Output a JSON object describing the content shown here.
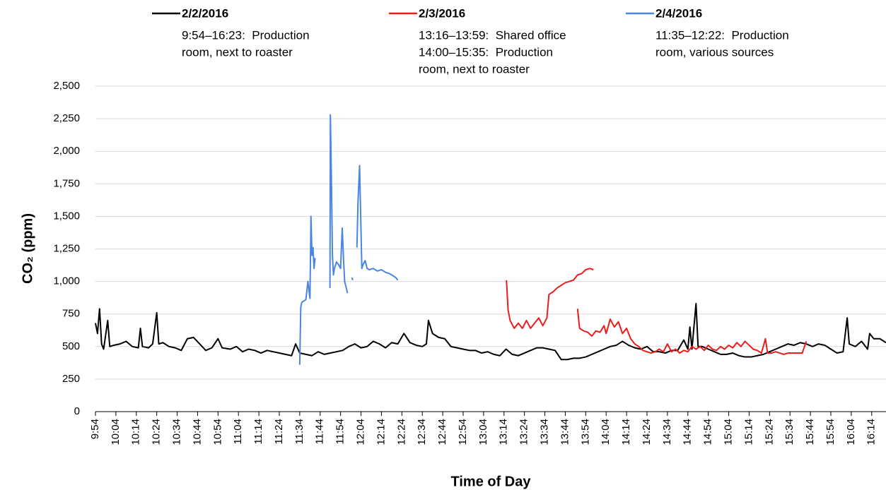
{
  "chart_data": {
    "type": "line",
    "x_label": "Time of Day",
    "y_label": "CO₂ (ppm)",
    "xlim": [
      594,
      981
    ],
    "ylim": [
      0,
      2500
    ],
    "yticks": [
      0,
      250,
      500,
      750,
      {
        "value": 1000,
        "label": "1,000"
      },
      {
        "value": 1250,
        "label": "1,250"
      },
      {
        "value": 1500,
        "label": "1,500"
      },
      {
        "value": 1750,
        "label": "1,750"
      },
      {
        "value": 2000,
        "label": "2,000"
      },
      {
        "value": 2250,
        "label": "2,250"
      },
      {
        "value": 2500,
        "label": "2,500"
      }
    ],
    "xticks": [
      {
        "value": 594,
        "label": "9:54"
      },
      {
        "value": 604,
        "label": "10:04"
      },
      {
        "value": 614,
        "label": "10:14"
      },
      {
        "value": 624,
        "label": "10:24"
      },
      {
        "value": 634,
        "label": "10:34"
      },
      {
        "value": 644,
        "label": "10:44"
      },
      {
        "value": 654,
        "label": "10:54"
      },
      {
        "value": 664,
        "label": "11:04"
      },
      {
        "value": 674,
        "label": "11:14"
      },
      {
        "value": 684,
        "label": "11:24"
      },
      {
        "value": 694,
        "label": "11:34"
      },
      {
        "value": 704,
        "label": "11:44"
      },
      {
        "value": 714,
        "label": "11:54"
      },
      {
        "value": 724,
        "label": "12:04"
      },
      {
        "value": 734,
        "label": "12:14"
      },
      {
        "value": 744,
        "label": "12:24"
      },
      {
        "value": 754,
        "label": "12:34"
      },
      {
        "value": 764,
        "label": "12:44"
      },
      {
        "value": 774,
        "label": "12:54"
      },
      {
        "value": 784,
        "label": "13:04"
      },
      {
        "value": 794,
        "label": "13:14"
      },
      {
        "value": 804,
        "label": "13:24"
      },
      {
        "value": 814,
        "label": "13:34"
      },
      {
        "value": 824,
        "label": "13:44"
      },
      {
        "value": 834,
        "label": "13:54"
      },
      {
        "value": 844,
        "label": "14:04"
      },
      {
        "value": 854,
        "label": "14:14"
      },
      {
        "value": 864,
        "label": "14:24"
      },
      {
        "value": 874,
        "label": "14:34"
      },
      {
        "value": 884,
        "label": "14:44"
      },
      {
        "value": 894,
        "label": "14:54"
      },
      {
        "value": 904,
        "label": "15:04"
      },
      {
        "value": 914,
        "label": "15:14"
      },
      {
        "value": 924,
        "label": "15:24"
      },
      {
        "value": 934,
        "label": "15:34"
      },
      {
        "value": 944,
        "label": "15:44"
      },
      {
        "value": 954,
        "label": "15:54"
      },
      {
        "value": 964,
        "label": "16:04"
      },
      {
        "value": 974,
        "label": "16:14"
      }
    ],
    "legend": "top",
    "series": [
      {
        "name": "2/2/2016",
        "color": "#000000",
        "description": [
          "9:54–16:23:  Production",
          "room, next to roaster"
        ],
        "x": [
          594,
          595,
          596,
          597,
          598,
          600,
          601,
          603,
          606,
          609,
          612,
          615,
          616,
          617,
          620,
          622,
          624,
          625,
          627,
          630,
          633,
          636,
          639,
          642,
          645,
          648,
          651,
          654,
          656,
          660,
          663,
          666,
          669,
          672,
          675,
          678,
          681,
          684,
          687,
          690,
          692,
          694,
          697,
          700,
          703,
          706,
          709,
          712,
          715,
          718,
          721,
          724,
          727,
          730,
          733,
          736,
          739,
          742,
          745,
          748,
          751,
          754,
          756,
          757,
          759,
          762,
          765,
          768,
          771,
          774,
          777,
          780,
          783,
          786,
          789,
          792,
          795,
          798,
          801,
          804,
          807,
          810,
          813,
          816,
          819,
          822,
          825,
          828,
          831,
          834,
          837,
          840,
          843,
          846,
          849,
          852,
          855,
          858,
          861,
          864,
          867,
          870,
          873,
          876,
          879,
          882,
          884,
          885,
          886,
          888,
          889,
          891,
          894,
          897,
          900,
          903,
          906,
          909,
          912,
          915,
          918,
          921,
          924,
          927,
          930,
          933,
          936,
          939,
          942,
          945,
          948,
          951,
          954,
          957,
          960,
          962,
          963,
          966,
          969,
          972,
          973,
          975,
          978,
          981
        ],
        "values": [
          680,
          600,
          790,
          520,
          480,
          700,
          500,
          510,
          520,
          540,
          500,
          490,
          640,
          500,
          490,
          520,
          760,
          520,
          530,
          500,
          490,
          470,
          560,
          570,
          520,
          470,
          490,
          560,
          490,
          480,
          500,
          460,
          480,
          470,
          450,
          470,
          460,
          450,
          440,
          430,
          520,
          450,
          440,
          430,
          460,
          440,
          450,
          460,
          470,
          500,
          520,
          490,
          500,
          540,
          520,
          490,
          530,
          520,
          600,
          530,
          510,
          500,
          520,
          700,
          600,
          570,
          560,
          500,
          490,
          480,
          470,
          470,
          450,
          460,
          440,
          430,
          480,
          440,
          430,
          450,
          470,
          490,
          490,
          480,
          470,
          400,
          400,
          410,
          410,
          420,
          440,
          460,
          480,
          500,
          510,
          540,
          510,
          490,
          480,
          500,
          460,
          460,
          450,
          470,
          470,
          550,
          480,
          650,
          480,
          830,
          500,
          500,
          480,
          460,
          440,
          440,
          450,
          430,
          420,
          420,
          430,
          440,
          460,
          480,
          500,
          520,
          510,
          530,
          520,
          500,
          520,
          510,
          480,
          450,
          460,
          720,
          520,
          500,
          540,
          480,
          600,
          560,
          560,
          530
        ]
      },
      {
        "name": "2/3/2016",
        "color": "#ee1c1c",
        "description": [
          "13:16–13:59:  Shared office",
          "14:00–15:35:  Production",
          "room, next to roaster"
        ],
        "x": [
          795.2,
          796,
          797,
          799,
          801,
          803,
          805,
          807,
          809,
          811,
          813,
          815,
          816,
          818,
          820,
          822,
          824,
          826,
          828,
          830,
          832,
          834,
          836,
          837.8,
          838.5,
          830,
          831,
          833,
          835,
          837,
          839,
          841,
          843,
          844,
          846,
          848,
          850,
          852,
          854,
          856,
          858,
          860,
          862,
          864,
          866,
          868,
          870,
          872,
          874,
          876,
          878,
          880,
          882,
          884,
          886,
          888,
          890,
          892,
          894,
          896,
          898,
          900,
          902,
          904,
          906,
          908,
          910,
          912,
          914,
          916,
          918,
          920,
          922,
          923,
          925,
          927,
          929,
          931,
          933,
          936,
          938,
          940,
          942
        ],
        "values": [
          1010,
          780,
          700,
          640,
          680,
          640,
          700,
          640,
          680,
          720,
          660,
          720,
          900,
          920,
          950,
          970,
          990,
          1000,
          1010,
          1050,
          1060,
          1090,
          1100,
          1090,
          null,
          790,
          640,
          620,
          610,
          580,
          620,
          610,
          660,
          600,
          710,
          650,
          690,
          600,
          640,
          560,
          520,
          500,
          470,
          460,
          450,
          460,
          480,
          460,
          520,
          460,
          480,
          450,
          470,
          460,
          500,
          480,
          500,
          470,
          510,
          480,
          470,
          500,
          480,
          510,
          490,
          530,
          500,
          540,
          510,
          480,
          470,
          450,
          560,
          450,
          450,
          460,
          450,
          440,
          450,
          450,
          450,
          450,
          540
        ]
      },
      {
        "name": "2/4/2016",
        "color": "#4a86e0",
        "description": [
          "11:35–12:22:  Production",
          "room, various sources"
        ],
        "x": [
          694,
          694.5,
          695,
          697,
          698,
          699,
          699.5,
          700,
          700.5,
          701,
          701.5,
          705,
          708.8,
          709,
          709.5,
          710,
          710.5,
          711,
          712,
          713,
          714,
          714.8,
          715.5,
          716,
          717.4,
          718.7,
          719.5,
          720,
          721,
          722,
          722.5,
          723.3,
          724.4,
          725,
          726,
          727,
          728,
          730,
          732,
          734,
          736,
          738,
          740,
          741,
          742
        ],
        "values": [
          360,
          800,
          840,
          860,
          1000,
          870,
          1500,
          1200,
          1260,
          1100,
          1180,
          null,
          950,
          2280,
          1800,
          1200,
          1050,
          1100,
          1150,
          1130,
          1100,
          1410,
          1150,
          1000,
          910,
          null,
          1030,
          1010,
          null,
          1260,
          1600,
          1890,
          1100,
          1130,
          1160,
          1100,
          1090,
          1100,
          1080,
          1090,
          1070,
          1060,
          1040,
          1030,
          1010
        ]
      }
    ]
  }
}
